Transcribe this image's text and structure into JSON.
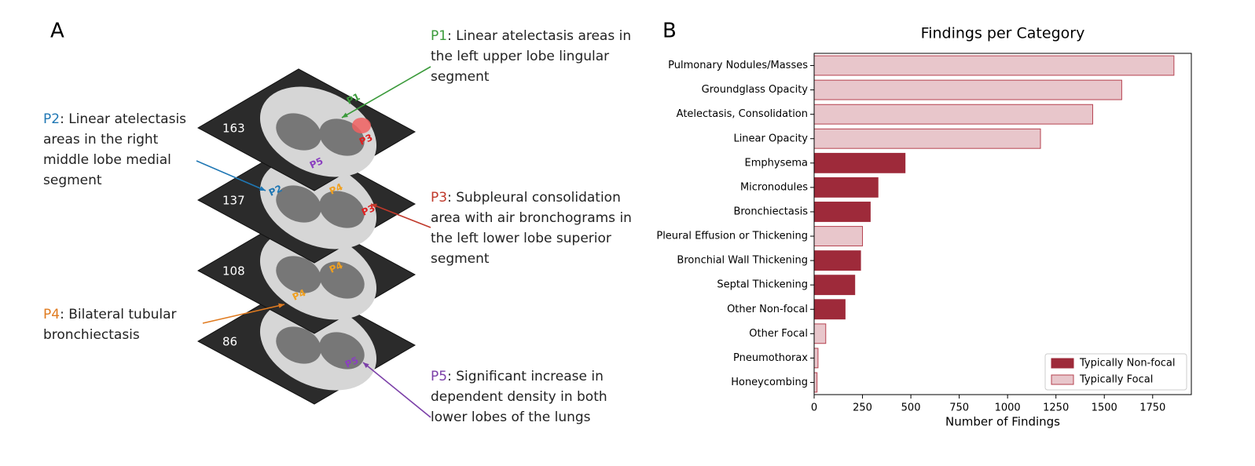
{
  "panel_a": {
    "letter": "A",
    "annotations": [
      {
        "label": "P1",
        "color": "#3a9a3a",
        "lines": [
          ": Linear atelectasis areas in",
          "the left upper lobe lingular",
          "segment"
        ]
      },
      {
        "label": "P2",
        "color": "#1f77b4",
        "lines": [
          ": Linear atelectasis",
          "areas in the right",
          "middle lobe medial",
          "segment"
        ]
      },
      {
        "label": "P3",
        "color": "#c0392b",
        "lines": [
          ": Subpleural consolidation",
          "area with air bronchograms in",
          "the left lower lobe superior",
          "segment"
        ]
      },
      {
        "label": "P4",
        "color": "#e07b20",
        "lines": [
          ": Bilateral tubular",
          "bronchiectasis"
        ]
      },
      {
        "label": "P5",
        "color": "#7b3fa8",
        "lines": [
          ": Significant increase in",
          "dependent density in both",
          "lower lobes of the lungs"
        ]
      }
    ],
    "slices": [
      "163",
      "137",
      "108",
      "86"
    ],
    "image_labels": [
      {
        "text": "P1",
        "color": "#3a9a3a"
      },
      {
        "text": "P3",
        "color": "#e02020"
      },
      {
        "text": "P5",
        "color": "#8a3fc0"
      },
      {
        "text": "P2",
        "color": "#1f77b4"
      },
      {
        "text": "P4",
        "color": "#f0a020"
      },
      {
        "text": "P3",
        "color": "#e02020"
      },
      {
        "text": "P4",
        "color": "#f0a020"
      },
      {
        "text": "P4",
        "color": "#f0a020"
      },
      {
        "text": "P5",
        "color": "#8a3fc0"
      }
    ]
  },
  "chart_data": {
    "type": "barh",
    "letter": "B",
    "title": "Findings per Category",
    "x_label": "Number of Findings",
    "categories": [
      "Pulmonary Nodules/Masses",
      "Groundglass Opacity",
      "Atelectasis, Consolidation",
      "Linear Opacity",
      "Emphysema",
      "Micronodules",
      "Bronchiectasis",
      "Pleural Effusion or Thickening",
      "Bronchial Wall Thickening",
      "Septal Thickening",
      "Other Non-focal",
      "Other Focal",
      "Pneumothorax",
      "Honeycombing"
    ],
    "series": [
      {
        "name": "Typically Non-focal",
        "color": "#9e2a3a",
        "edge": "#9e2a3a",
        "values": [
          null,
          null,
          null,
          null,
          470,
          330,
          290,
          null,
          240,
          210,
          160,
          null,
          null,
          null
        ]
      },
      {
        "name": "Typically Focal",
        "color": "#e8c6cb",
        "edge": "#b5414f",
        "values": [
          1860,
          1590,
          1440,
          1170,
          null,
          null,
          null,
          250,
          null,
          null,
          null,
          60,
          20,
          15
        ]
      }
    ],
    "xlim": [
      0,
      1950
    ],
    "xticks": [
      0,
      250,
      500,
      750,
      1000,
      1250,
      1500,
      1750
    ],
    "legend": "lower right"
  }
}
